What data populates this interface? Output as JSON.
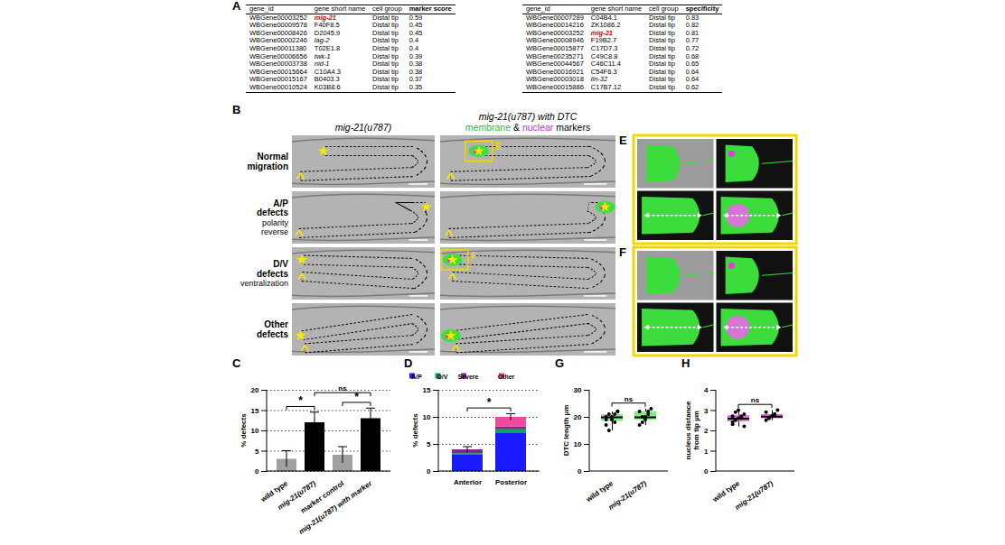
{
  "panel_A": {
    "panel": "A",
    "highlight": "mig-21",
    "tables": [
      {
        "columns": [
          "gene_id",
          "gene short name",
          "cell group",
          "marker score"
        ],
        "rows": [
          [
            "WBGene00003252",
            "mig-21",
            "Distal tip",
            "0.59"
          ],
          [
            "WBGene00009578",
            "F40F8.5",
            "Distal tip",
            "0.45"
          ],
          [
            "WBGene00008426",
            "D2045.9",
            "Distal tip",
            "0.45"
          ],
          [
            "WBGene00002246",
            "lag-2",
            "Distal tip",
            "0.4"
          ],
          [
            "WBGene00011380",
            "T02E1.8",
            "Distal tip",
            "0.4"
          ],
          [
            "WBGene00006656",
            "twk-1",
            "Distal tip",
            "0.39"
          ],
          [
            "WBGene00003738",
            "nid-1",
            "Distal tip",
            "0.38"
          ],
          [
            "WBGene00015664",
            "C10A4.3",
            "Distal tip",
            "0.38"
          ],
          [
            "WBGene00015167",
            "B0403.3",
            "Distal tip",
            "0.37"
          ],
          [
            "WBGene00010524",
            "K03B8.6",
            "Distal tip",
            "0.35"
          ]
        ]
      },
      {
        "columns": [
          "gene_id",
          "gene short name",
          "cell group",
          "specificity"
        ],
        "rows": [
          [
            "WBGene00007289",
            "C04B4.1",
            "Distal tip",
            "0.83"
          ],
          [
            "WBGene00014216",
            "ZK1086.2",
            "Distal tip",
            "0.82"
          ],
          [
            "WBGene00003252",
            "mig-21",
            "Distal tip",
            "0.81"
          ],
          [
            "WBGene00008946",
            "F19B2.7",
            "Distal tip",
            "0.77"
          ],
          [
            "WBGene00015877",
            "C17D7.3",
            "Distal tip",
            "0.72"
          ],
          [
            "WBGene00235271",
            "C49C8.8",
            "Distal tip",
            "0.68"
          ],
          [
            "WBGene00044567",
            "C46C11.4",
            "Distal tip",
            "0.65"
          ],
          [
            "WBGene00016921",
            "C54F6.3",
            "Distal tip",
            "0.64"
          ],
          [
            "WBGene00003018",
            "lin-32",
            "Distal tip",
            "0.64"
          ],
          [
            "WBGene00015886",
            "C17B7.12",
            "Distal tip",
            "0.62"
          ]
        ]
      }
    ]
  },
  "panel_B": {
    "panel": "B",
    "column_headers": [
      {
        "lines": [
          [
            {
              "text": "mig-21(u787)"
            }
          ]
        ]
      },
      {
        "lines": [
          [
            {
              "text": "mig-21(u787) with DTC"
            }
          ],
          [
            {
              "text": "membrane",
              "color": "#1fbf2a"
            },
            {
              "text": " & "
            },
            {
              "text": "nuclear",
              "color": "#c832c8"
            },
            {
              "text": " markers"
            }
          ]
        ]
      }
    ],
    "rows": [
      {
        "title": "Normal migration",
        "callout": "E"
      },
      {
        "title": "A/P defects",
        "subtitle": "polarity reverse"
      },
      {
        "title": "D/V defects",
        "subtitle": "ventralization",
        "callout": "F"
      },
      {
        "title": "Other defects"
      }
    ]
  },
  "zoom_panels": [
    {
      "panel": "E"
    },
    {
      "panel": "F"
    }
  ],
  "chart_data": [
    {
      "panel": "C",
      "type": "bar",
      "categories": [
        "wild type",
        "mig-21(u787)",
        "marker control",
        "mig-21(u787) with marker"
      ],
      "values": [
        3,
        12,
        4,
        13
      ],
      "errors": [
        2,
        2.5,
        2,
        2.5
      ],
      "colors": [
        "#a0a0a0",
        "#000000",
        "#a0a0a0",
        "#000000"
      ],
      "ylabel": "% defects",
      "ylim": [
        0,
        20
      ],
      "yticks": [
        0,
        5,
        10,
        15,
        20
      ],
      "grid": true,
      "annotations": [
        {
          "text": "*",
          "between": [
            "wild type",
            "mig-21(u787)"
          ]
        },
        {
          "text": "ns",
          "between": [
            "mig-21(u787)",
            "mig-21(u787) with marker"
          ]
        },
        {
          "text": "*",
          "between": [
            "marker control",
            "mig-21(u787) with marker"
          ]
        }
      ]
    },
    {
      "panel": "D",
      "type": "bar",
      "stacked": true,
      "categories": [
        "Anterior",
        "Posterior"
      ],
      "series": [
        {
          "name": "A/P",
          "color": "#1a1aff",
          "values": [
            3,
            7
          ]
        },
        {
          "name": "D/V",
          "color": "#10a060",
          "values": [
            0.3,
            0.7
          ]
        },
        {
          "name": "Severe",
          "color": "#7a2a90",
          "values": [
            0.7,
            0.5
          ]
        },
        {
          "name": "Other",
          "color": "#ee4aa0",
          "values": [
            0,
            1.8
          ]
        }
      ],
      "total_errors": [
        0.5,
        0.6
      ],
      "ylabel": "% defects",
      "ylim": [
        0,
        15
      ],
      "yticks": [
        0,
        5,
        10,
        15
      ],
      "grid": true,
      "legend": "top",
      "annotations": [
        {
          "text": "*",
          "between": [
            "Anterior",
            "Posterior"
          ]
        }
      ]
    },
    {
      "panel": "G",
      "type": "box",
      "categories": [
        "wild type",
        "mig-21(u787)"
      ],
      "values": [
        [
          20,
          21,
          19,
          18,
          22,
          17,
          15,
          20,
          21,
          22,
          19
        ],
        [
          22,
          20,
          19,
          21,
          23,
          17,
          18,
          20,
          22
        ]
      ],
      "color": "#86e886",
      "ylabel": "DTC length µm",
      "ylim": [
        0,
        30
      ],
      "yticks": [
        0,
        10,
        20,
        30
      ],
      "grid": false,
      "annotations": [
        {
          "text": "ns",
          "between": [
            "wild type",
            "mig-21(u787)"
          ]
        }
      ]
    },
    {
      "panel": "H",
      "type": "box",
      "categories": [
        "wild type",
        "mig-21(u787)"
      ],
      "values": [
        [
          2.3,
          2.5,
          2.6,
          2.7,
          2.8,
          2.4,
          2.9,
          3.0,
          2.6,
          2.2,
          2.7
        ],
        [
          2.5,
          2.6,
          2.7,
          2.8,
          3.0,
          2.9,
          2.6,
          2.7,
          2.8
        ]
      ],
      "color": "#e070e0",
      "ylabel": "nucleus distance from tip µm",
      "ylim": [
        0,
        4
      ],
      "yticks": [
        0,
        1,
        2,
        3,
        4
      ],
      "grid": false,
      "annotations": [
        {
          "text": "ns",
          "between": [
            "wild type",
            "mig-21(u787)"
          ]
        }
      ]
    }
  ]
}
